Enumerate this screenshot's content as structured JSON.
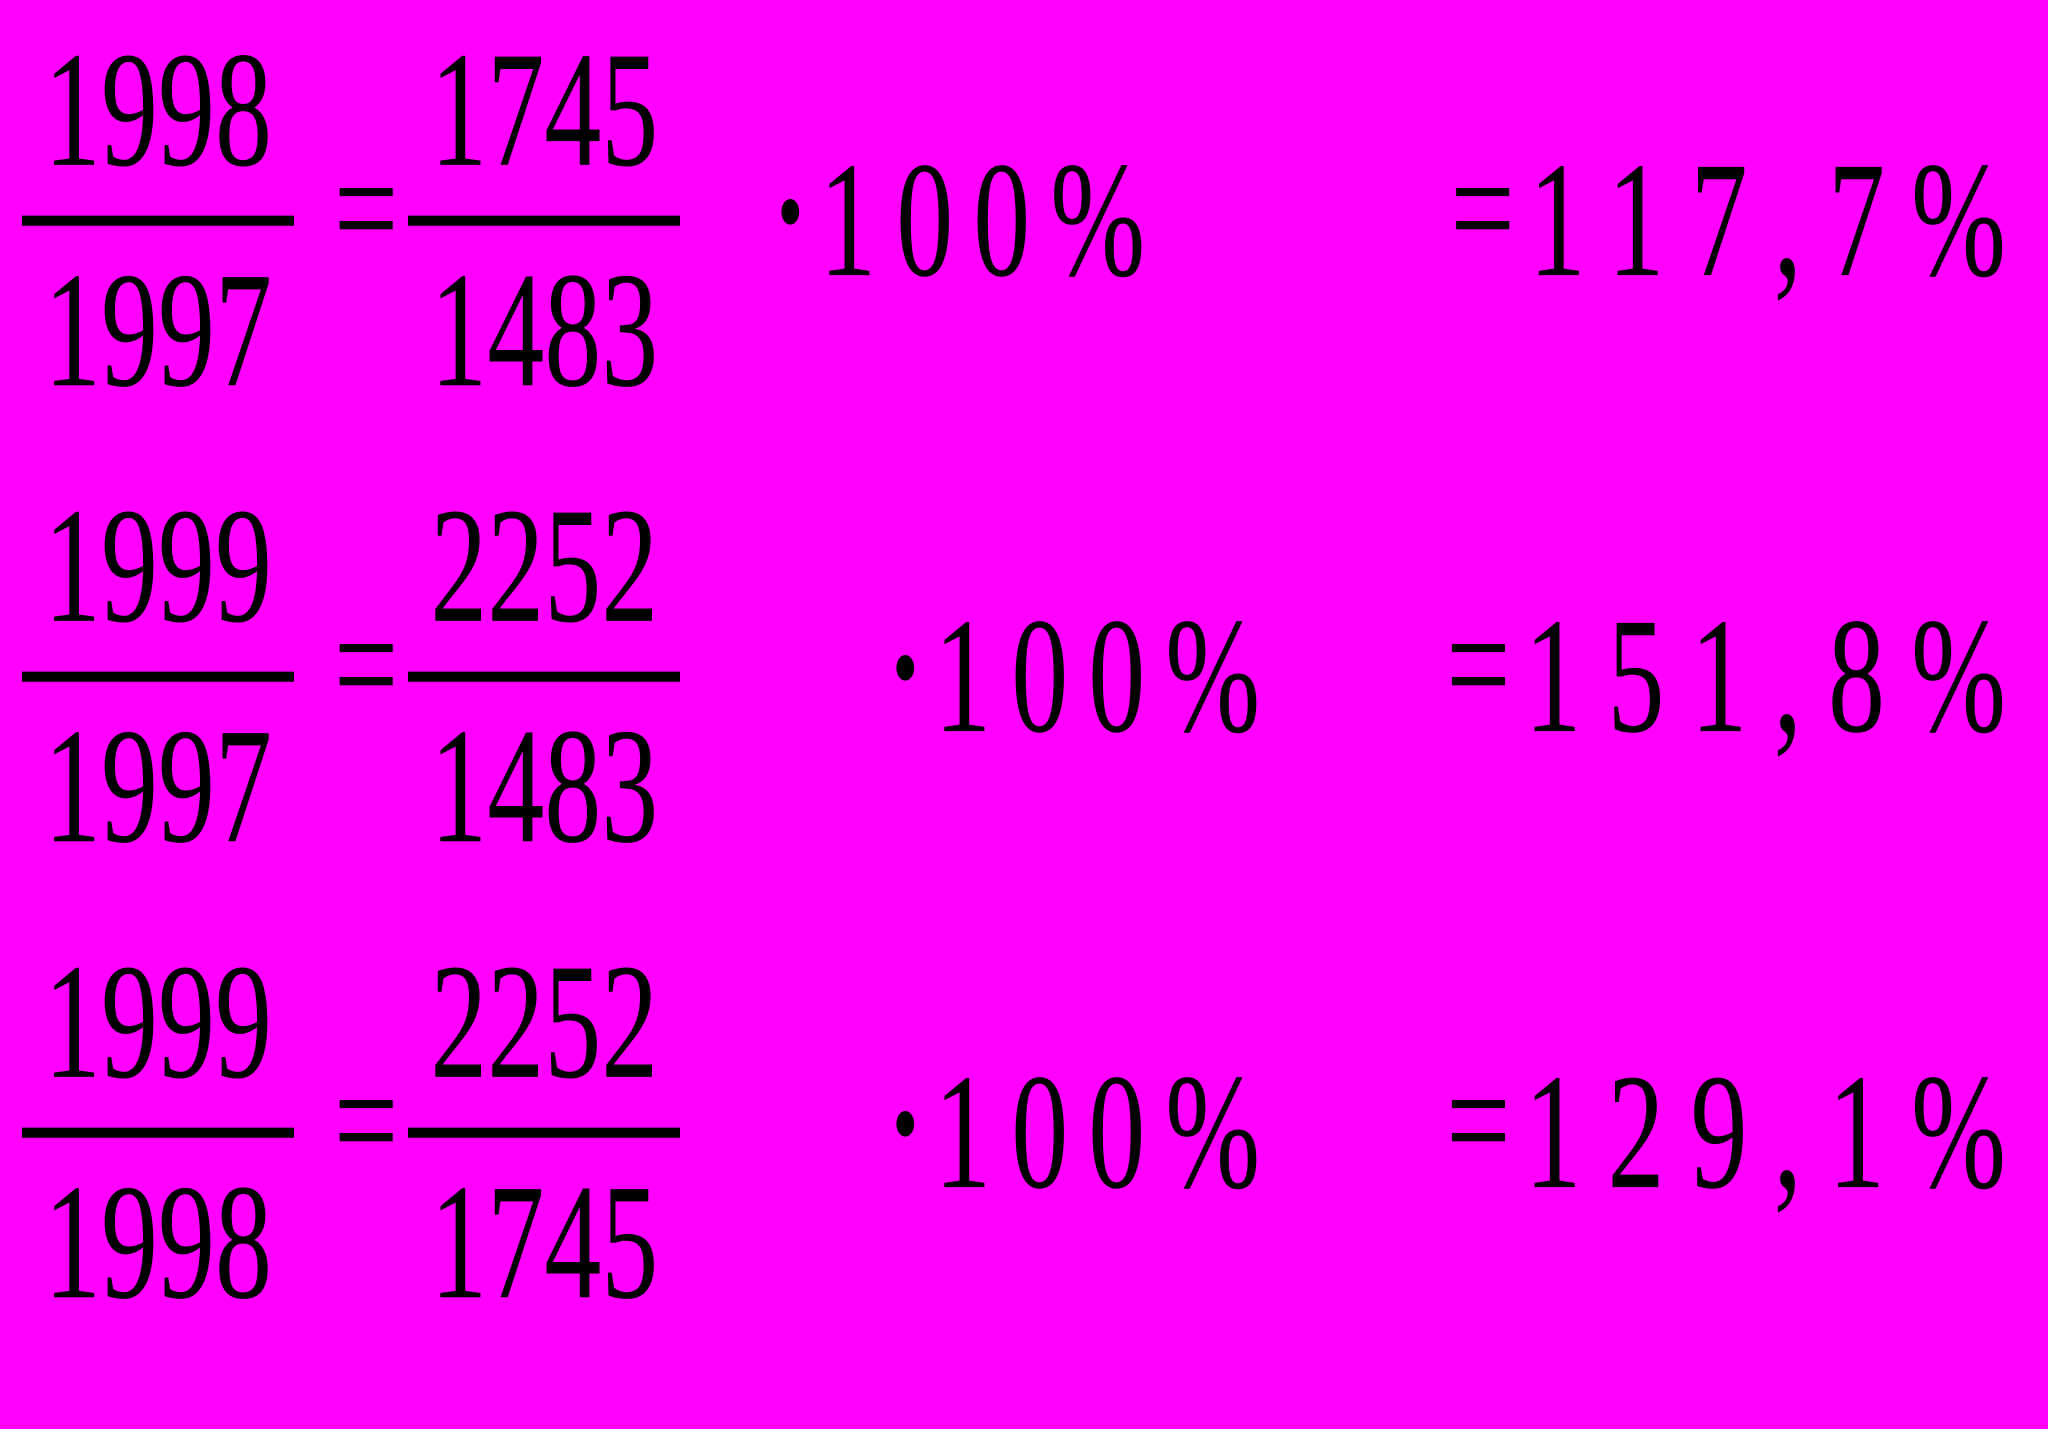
{
  "page": {
    "background_color": "#FF00FF",
    "text_color": "#000000",
    "description": "Three growth-rate percentage calculations shown as fractions"
  },
  "equations": [
    {
      "lhs": {
        "numerator": "1998",
        "denominator": "1997"
      },
      "equals1": "=",
      "rhs": {
        "numerator": "1745",
        "denominator": "1483"
      },
      "multiply_dot": "·",
      "factor": "100%",
      "equals2": "=",
      "result": "117,7%"
    },
    {
      "lhs": {
        "numerator": "1999",
        "denominator": "1997"
      },
      "equals1": "=",
      "rhs": {
        "numerator": "2252",
        "denominator": "1483"
      },
      "multiply_dot": "·",
      "factor": "100%",
      "equals2": "=",
      "result": "151,8%"
    },
    {
      "lhs": {
        "numerator": "1999",
        "denominator": "1998"
      },
      "equals1": "=",
      "rhs": {
        "numerator": "2252",
        "denominator": "1745"
      },
      "multiply_dot": "·",
      "factor": "100%",
      "equals2": "=",
      "result": "129,1%"
    }
  ]
}
